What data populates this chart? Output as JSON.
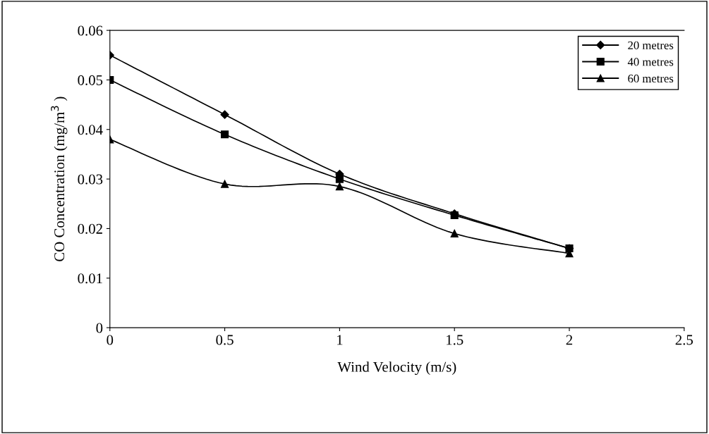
{
  "chart_data": {
    "type": "line",
    "xlabel": "Wind Velocity (m/s)",
    "ylabel": "CO Concentration (mg/m$^{3}$ )",
    "x": [
      0,
      0.5,
      1,
      1.5,
      2
    ],
    "series": [
      {
        "name": "20 metres",
        "color": "#000000",
        "marker": "diamond",
        "values": [
          0.055,
          0.043,
          0.031,
          0.023,
          0.016
        ]
      },
      {
        "name": "40 metres",
        "color": "#000000",
        "marker": "square",
        "values": [
          0.05,
          0.039,
          0.03,
          0.0227,
          0.016
        ]
      },
      {
        "name": "60 metres",
        "color": "#000000",
        "marker": "triangle",
        "values": [
          0.038,
          0.029,
          0.0285,
          0.019,
          0.015
        ]
      }
    ],
    "xlim": [
      0,
      2.5
    ],
    "xticks": [
      0,
      0.5,
      1,
      1.5,
      2,
      2.5
    ],
    "ylim": [
      0,
      0.06
    ],
    "yticks": [
      0,
      0.01,
      0.02,
      0.03,
      0.04,
      0.05,
      0.06
    ],
    "grid": false,
    "legend": "top right",
    "line_style": "solid"
  }
}
